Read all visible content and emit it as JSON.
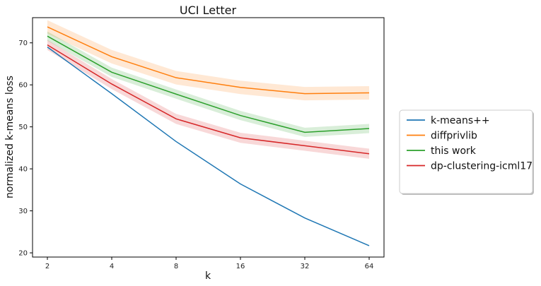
{
  "chart_data": {
    "type": "line",
    "title": "UCI Letter",
    "xlabel": "k",
    "ylabel": "normalized k-means loss",
    "x": [
      2,
      4,
      8,
      16,
      32,
      64
    ],
    "x_ticks": [
      "2",
      "4",
      "8",
      "16",
      "32",
      "64"
    ],
    "x_scale": "log2",
    "y_ticks": [
      20,
      30,
      40,
      50,
      60,
      70
    ],
    "ylim": [
      19,
      76
    ],
    "grid": false,
    "legend_position": "outside-right",
    "series": [
      {
        "name": "k-means++",
        "color": "#1f77b4",
        "values": [
          69.0,
          57.9,
          46.5,
          36.4,
          28.3,
          21.7
        ],
        "band": 0
      },
      {
        "name": "diffprivlib",
        "color": "#ff7f0e",
        "values": [
          73.8,
          66.7,
          61.7,
          59.4,
          57.9,
          58.1
        ],
        "band": 1.6
      },
      {
        "name": "this work",
        "color": "#2ca02c",
        "values": [
          71.6,
          63.0,
          57.8,
          52.7,
          48.7,
          49.6
        ],
        "band": 1.1
      },
      {
        "name": "dp-clustering-icml17",
        "color": "#d62728",
        "values": [
          69.5,
          60.2,
          51.9,
          47.4,
          45.5,
          43.6
        ],
        "band": 1.2
      }
    ]
  }
}
